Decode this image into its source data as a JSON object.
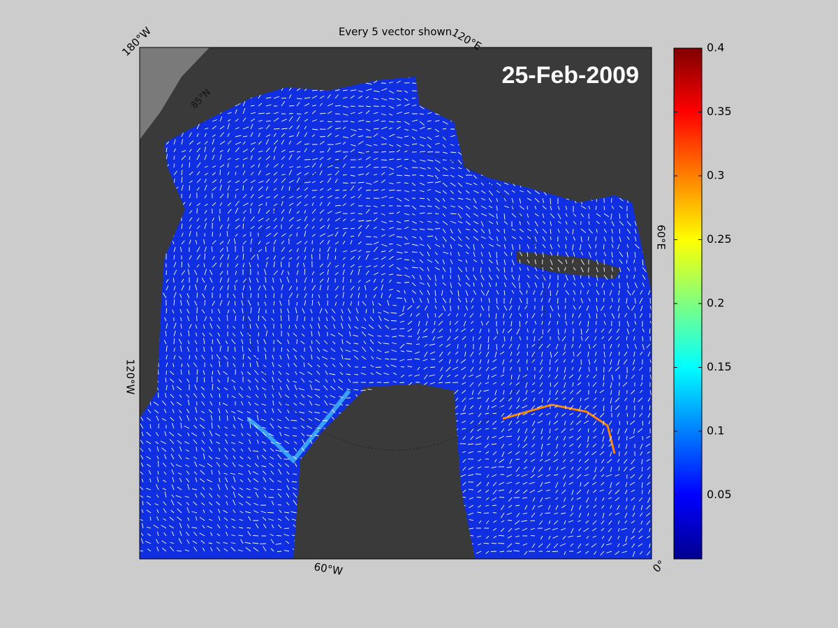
{
  "map": {
    "title": "Every 5 vector shown",
    "date": "25-Feb-2009",
    "longitude_labels": [
      "180°W",
      "120°E",
      "60°E",
      "0°",
      "60°W",
      "120°W"
    ],
    "latitude_labels": [
      "85°N"
    ]
  },
  "colorbar": {
    "colormap": "jet",
    "clim": [
      0,
      0.4
    ],
    "ticks": [
      0.05,
      0.1,
      0.15,
      0.2,
      0.25,
      0.3,
      0.35,
      0.4
    ]
  }
}
